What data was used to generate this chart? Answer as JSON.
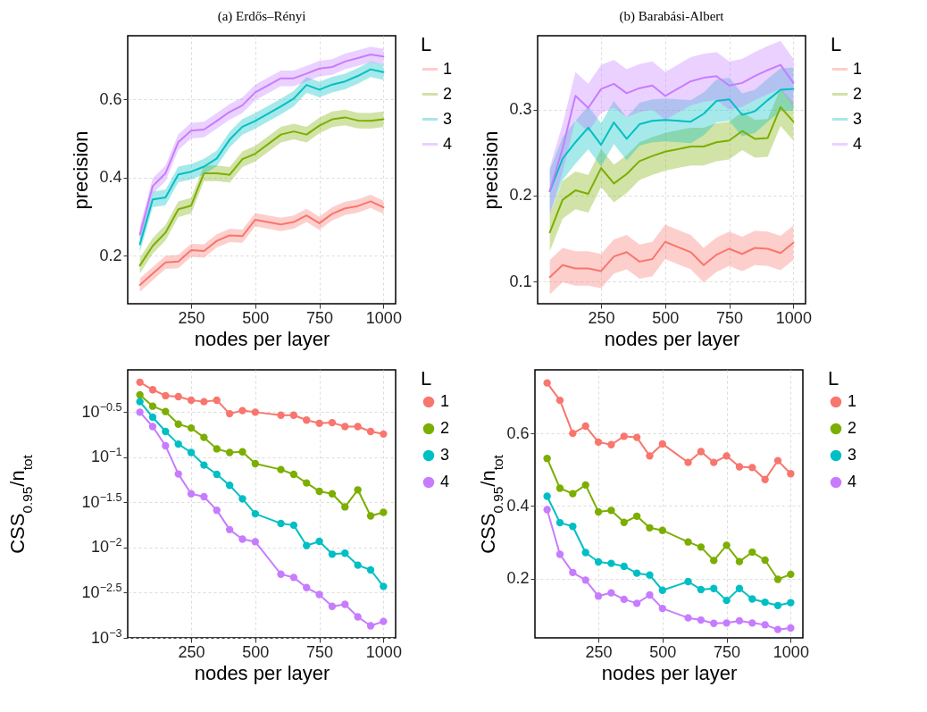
{
  "chart_data": [
    {
      "type": "line",
      "title": "(a) Erdős–Rényi",
      "xlabel": "nodes per layer",
      "ylabel": "precision",
      "legend_title": "L",
      "legend": "right",
      "grid": true,
      "x": [
        50,
        100,
        150,
        200,
        250,
        300,
        350,
        400,
        450,
        500,
        600,
        650,
        700,
        750,
        800,
        850,
        900,
        950,
        1000
      ],
      "xlim": [
        2.5,
        1047.5
      ],
      "xticks": [
        250,
        500,
        750,
        1000
      ],
      "ylim": [
        0.077,
        0.763
      ],
      "yticks": [
        0.2,
        0.4,
        0.6
      ],
      "series": [
        {
          "name": "1",
          "color": "#f8766d",
          "values": [
            0.125,
            0.154,
            0.183,
            0.185,
            0.214,
            0.212,
            0.238,
            0.252,
            0.25,
            0.292,
            0.28,
            0.286,
            0.303,
            0.283,
            0.307,
            0.321,
            0.327,
            0.339,
            0.324
          ],
          "lower": [
            0.108,
            0.137,
            0.166,
            0.168,
            0.197,
            0.195,
            0.221,
            0.235,
            0.233,
            0.275,
            0.263,
            0.269,
            0.286,
            0.266,
            0.29,
            0.304,
            0.31,
            0.322,
            0.307
          ],
          "upper": [
            0.142,
            0.171,
            0.2,
            0.202,
            0.231,
            0.229,
            0.255,
            0.269,
            0.267,
            0.309,
            0.297,
            0.303,
            0.32,
            0.3,
            0.324,
            0.338,
            0.344,
            0.356,
            0.341
          ]
        },
        {
          "name": "2",
          "color": "#7cae00",
          "values": [
            0.175,
            0.225,
            0.259,
            0.319,
            0.328,
            0.411,
            0.411,
            0.407,
            0.447,
            0.461,
            0.51,
            0.518,
            0.51,
            0.533,
            0.549,
            0.554,
            0.546,
            0.545,
            0.549
          ],
          "lower": [
            0.155,
            0.205,
            0.239,
            0.299,
            0.308,
            0.391,
            0.391,
            0.387,
            0.427,
            0.441,
            0.49,
            0.498,
            0.49,
            0.513,
            0.529,
            0.534,
            0.526,
            0.525,
            0.529
          ],
          "upper": [
            0.195,
            0.245,
            0.279,
            0.339,
            0.348,
            0.431,
            0.431,
            0.427,
            0.467,
            0.481,
            0.53,
            0.538,
            0.53,
            0.553,
            0.569,
            0.574,
            0.566,
            0.565,
            0.569
          ]
        },
        {
          "name": "3",
          "color": "#00bfc4",
          "values": [
            0.229,
            0.344,
            0.349,
            0.408,
            0.415,
            0.428,
            0.449,
            0.497,
            0.53,
            0.545,
            0.582,
            0.602,
            0.637,
            0.625,
            0.638,
            0.646,
            0.66,
            0.677,
            0.67
          ],
          "lower": [
            0.209,
            0.324,
            0.329,
            0.388,
            0.395,
            0.408,
            0.429,
            0.477,
            0.51,
            0.525,
            0.562,
            0.582,
            0.617,
            0.605,
            0.618,
            0.626,
            0.64,
            0.657,
            0.65
          ],
          "upper": [
            0.249,
            0.364,
            0.369,
            0.428,
            0.435,
            0.448,
            0.469,
            0.517,
            0.55,
            0.565,
            0.602,
            0.622,
            0.657,
            0.645,
            0.658,
            0.666,
            0.68,
            0.697,
            0.69
          ]
        },
        {
          "name": "4",
          "color": "#c77cff",
          "values": [
            0.254,
            0.378,
            0.411,
            0.491,
            0.52,
            0.523,
            0.545,
            0.568,
            0.585,
            0.618,
            0.654,
            0.654,
            0.666,
            0.679,
            0.683,
            0.697,
            0.706,
            0.715,
            0.71
          ],
          "lower": [
            0.234,
            0.358,
            0.391,
            0.471,
            0.5,
            0.503,
            0.525,
            0.548,
            0.565,
            0.598,
            0.634,
            0.634,
            0.646,
            0.659,
            0.663,
            0.677,
            0.686,
            0.695,
            0.69
          ],
          "upper": [
            0.274,
            0.398,
            0.431,
            0.511,
            0.54,
            0.543,
            0.565,
            0.588,
            0.605,
            0.638,
            0.674,
            0.674,
            0.686,
            0.699,
            0.703,
            0.717,
            0.726,
            0.735,
            0.73
          ]
        }
      ]
    },
    {
      "type": "line",
      "title": "(b) Barabási-Albert",
      "xlabel": "nodes per layer",
      "ylabel": "precision",
      "legend_title": "L",
      "legend": "right",
      "grid": true,
      "x": [
        50,
        100,
        150,
        200,
        250,
        300,
        350,
        400,
        450,
        500,
        600,
        650,
        700,
        750,
        800,
        850,
        900,
        950,
        1000
      ],
      "xlim": [
        2.5,
        1047.5
      ],
      "xticks": [
        250,
        500,
        750,
        1000
      ],
      "ylim": [
        0.074,
        0.386
      ],
      "yticks": [
        0.1,
        0.2,
        0.3
      ],
      "series": [
        {
          "name": "1",
          "color": "#f8766d",
          "values": [
            0.105,
            0.119,
            0.115,
            0.115,
            0.112,
            0.129,
            0.134,
            0.123,
            0.126,
            0.146,
            0.134,
            0.119,
            0.131,
            0.138,
            0.132,
            0.139,
            0.138,
            0.133,
            0.145
          ],
          "lower": [
            0.085,
            0.099,
            0.095,
            0.095,
            0.092,
            0.109,
            0.114,
            0.103,
            0.106,
            0.126,
            0.114,
            0.099,
            0.111,
            0.118,
            0.112,
            0.119,
            0.118,
            0.113,
            0.125
          ],
          "upper": [
            0.125,
            0.139,
            0.135,
            0.135,
            0.132,
            0.149,
            0.154,
            0.143,
            0.146,
            0.166,
            0.154,
            0.139,
            0.151,
            0.158,
            0.152,
            0.159,
            0.158,
            0.153,
            0.165
          ]
        },
        {
          "name": "2",
          "color": "#7cae00",
          "values": [
            0.157,
            0.195,
            0.206,
            0.202,
            0.232,
            0.214,
            0.225,
            0.24,
            0.246,
            0.251,
            0.257,
            0.257,
            0.262,
            0.264,
            0.275,
            0.266,
            0.267,
            0.303,
            0.286
          ],
          "lower": [
            0.135,
            0.173,
            0.184,
            0.18,
            0.21,
            0.192,
            0.203,
            0.218,
            0.224,
            0.229,
            0.235,
            0.235,
            0.24,
            0.242,
            0.253,
            0.244,
            0.245,
            0.281,
            0.264
          ],
          "upper": [
            0.179,
            0.217,
            0.228,
            0.224,
            0.254,
            0.236,
            0.247,
            0.262,
            0.268,
            0.273,
            0.279,
            0.279,
            0.284,
            0.286,
            0.297,
            0.288,
            0.289,
            0.325,
            0.308
          ]
        },
        {
          "name": "3",
          "color": "#00bfc4",
          "values": [
            0.205,
            0.243,
            0.262,
            0.279,
            0.259,
            0.285,
            0.266,
            0.283,
            0.287,
            0.288,
            0.286,
            0.295,
            0.31,
            0.312,
            0.294,
            0.298,
            0.311,
            0.323,
            0.324
          ],
          "lower": [
            0.18,
            0.218,
            0.237,
            0.254,
            0.234,
            0.26,
            0.241,
            0.258,
            0.262,
            0.263,
            0.261,
            0.27,
            0.285,
            0.287,
            0.269,
            0.273,
            0.286,
            0.298,
            0.299
          ],
          "upper": [
            0.23,
            0.268,
            0.287,
            0.304,
            0.284,
            0.31,
            0.291,
            0.308,
            0.312,
            0.313,
            0.311,
            0.32,
            0.335,
            0.337,
            0.319,
            0.323,
            0.336,
            0.348,
            0.349
          ]
        },
        {
          "name": "4",
          "color": "#c77cff",
          "values": [
            0.205,
            0.255,
            0.316,
            0.302,
            0.324,
            0.33,
            0.319,
            0.325,
            0.328,
            0.316,
            0.333,
            0.337,
            0.339,
            0.328,
            0.331,
            0.339,
            0.346,
            0.352,
            0.331
          ],
          "lower": [
            0.177,
            0.227,
            0.288,
            0.274,
            0.296,
            0.302,
            0.291,
            0.297,
            0.3,
            0.288,
            0.305,
            0.309,
            0.311,
            0.3,
            0.303,
            0.311,
            0.318,
            0.324,
            0.303
          ],
          "upper": [
            0.233,
            0.283,
            0.344,
            0.33,
            0.352,
            0.358,
            0.347,
            0.353,
            0.356,
            0.344,
            0.361,
            0.365,
            0.367,
            0.356,
            0.359,
            0.367,
            0.374,
            0.38,
            0.359
          ]
        }
      ]
    },
    {
      "type": "line",
      "xlabel": "nodes per layer",
      "ylabel": "CSS$_{0.95}$/n$_{tot}$",
      "legend_title": "L",
      "legend": "right",
      "grid": true,
      "marker": "circle",
      "log": true,
      "x": [
        50,
        100,
        150,
        200,
        250,
        300,
        350,
        400,
        450,
        500,
        600,
        650,
        700,
        750,
        800,
        850,
        900,
        950,
        1000
      ],
      "xlim": [
        2.5,
        1047.5
      ],
      "xticks": [
        250,
        500,
        750,
        1000
      ],
      "ylim": [
        0.001,
        0.93
      ],
      "yticks": [
        {
          "value": 0.001,
          "label": "10$^{−3}$"
        },
        {
          "value": 0.003162,
          "label": "10$^{−2.5}$"
        },
        {
          "value": 0.01,
          "label": "10$^{−2}$"
        },
        {
          "value": 0.03162,
          "label": "10$^{−1.5}$"
        },
        {
          "value": 0.1,
          "label": "10$^{−1}$"
        },
        {
          "value": 0.3162,
          "label": "10$^{−0.5}$"
        }
      ],
      "series": [
        {
          "name": "1",
          "color": "#f8766d",
          "values": [
            0.678,
            0.56,
            0.481,
            0.47,
            0.429,
            0.413,
            0.429,
            0.304,
            0.329,
            0.316,
            0.293,
            0.293,
            0.258,
            0.238,
            0.242,
            0.219,
            0.219,
            0.193,
            0.181
          ]
        },
        {
          "name": "2",
          "color": "#7cae00",
          "values": [
            0.492,
            0.368,
            0.321,
            0.233,
            0.211,
            0.166,
            0.124,
            0.113,
            0.115,
            0.0851,
            0.0731,
            0.0647,
            0.0519,
            0.042,
            0.0394,
            0.0282,
            0.0436,
            0.0224,
            0.0246
          ]
        },
        {
          "name": "3",
          "color": "#00bfc4",
          "values": [
            0.413,
            0.278,
            0.193,
            0.14,
            0.113,
            0.082,
            0.0647,
            0.0489,
            0.0347,
            0.0237,
            0.0185,
            0.0177,
            0.0105,
            0.0117,
            0.00845,
            0.00865,
            0.00638,
            0.00565,
            0.00372
          ]
        },
        {
          "name": "4",
          "color": "#c77cff",
          "values": [
            0.316,
            0.219,
            0.134,
            0.0653,
            0.0394,
            0.0366,
            0.0259,
            0.0158,
            0.0124,
            0.0116,
            0.00507,
            0.00467,
            0.0036,
            0.00302,
            0.00223,
            0.00235,
            0.00171,
            0.00136,
            0.00152
          ]
        }
      ]
    },
    {
      "type": "line",
      "xlabel": "nodes per layer",
      "ylabel": "CSS$_{0.95}$/n$_{tot}$",
      "legend_title": "L",
      "legend": "right",
      "grid": true,
      "marker": "circle",
      "x": [
        50,
        100,
        150,
        200,
        250,
        300,
        350,
        400,
        450,
        500,
        600,
        650,
        700,
        750,
        800,
        850,
        900,
        950,
        1000
      ],
      "xlim": [
        2.5,
        1047.5
      ],
      "xticks": [
        250,
        500,
        750,
        1000
      ],
      "ylim": [
        0.037,
        0.775
      ],
      "yticks": [
        0.2,
        0.4,
        0.6
      ],
      "series": [
        {
          "name": "1",
          "color": "#f8766d",
          "values": [
            0.739,
            0.691,
            0.6,
            0.62,
            0.576,
            0.569,
            0.592,
            0.589,
            0.538,
            0.571,
            0.52,
            0.55,
            0.52,
            0.538,
            0.508,
            0.506,
            0.473,
            0.525,
            0.489
          ]
        },
        {
          "name": "2",
          "color": "#7cae00",
          "values": [
            0.531,
            0.449,
            0.434,
            0.458,
            0.384,
            0.388,
            0.355,
            0.372,
            0.34,
            0.333,
            0.301,
            0.287,
            0.25,
            0.292,
            0.247,
            0.273,
            0.251,
            0.198,
            0.212
          ]
        },
        {
          "name": "3",
          "color": "#00bfc4",
          "values": [
            0.427,
            0.354,
            0.344,
            0.272,
            0.246,
            0.242,
            0.234,
            0.215,
            0.21,
            0.168,
            0.192,
            0.17,
            0.173,
            0.14,
            0.173,
            0.144,
            0.135,
            0.126,
            0.134
          ]
        },
        {
          "name": "4",
          "color": "#c77cff",
          "values": [
            0.39,
            0.267,
            0.217,
            0.196,
            0.152,
            0.161,
            0.143,
            0.132,
            0.155,
            0.118,
            0.092,
            0.086,
            0.077,
            0.078,
            0.084,
            0.078,
            0.073,
            0.06,
            0.064
          ]
        }
      ]
    }
  ]
}
